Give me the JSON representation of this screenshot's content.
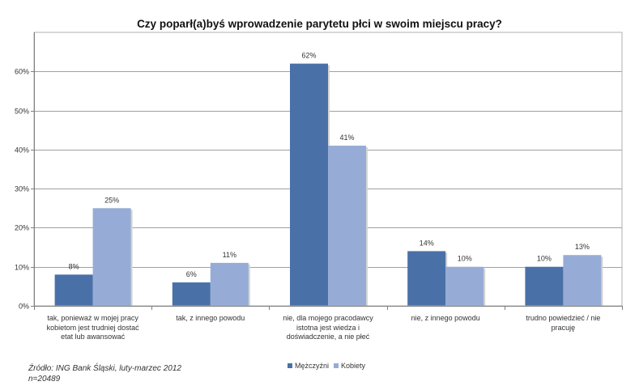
{
  "chart_data": {
    "type": "bar",
    "title": "Czy poparł(a)byś wprowadzenie parytetu płci w swoim miejscu pracy?",
    "categories": [
      [
        "tak, ponieważ w mojej pracy",
        "kobietom jest trudniej dostać",
        "etat lub awansować"
      ],
      [
        "tak, z innego powodu"
      ],
      [
        "nie, dla mojego pracodawcy",
        "istotna jest wiedza i",
        "doświadczenie, a nie płeć"
      ],
      [
        "nie, z innego powodu"
      ],
      [
        "trudno powiedzieć / nie",
        "pracuję"
      ]
    ],
    "series": [
      {
        "name": "Mężczyźni",
        "color": "#4a70a8",
        "values": [
          8,
          6,
          62,
          14,
          10
        ],
        "labels": [
          "8%",
          "6%",
          "62%",
          "14%",
          "10%"
        ]
      },
      {
        "name": "Kobiety",
        "color": "#96acd6",
        "values": [
          25,
          11,
          41,
          10,
          13
        ],
        "labels": [
          "25%",
          "11%",
          "41%",
          "10%",
          "13%"
        ]
      }
    ],
    "ylim": [
      0,
      70
    ],
    "yticks": [
      0,
      10,
      20,
      30,
      40,
      50,
      60
    ],
    "ytick_labels": [
      "0%",
      "10%",
      "20%",
      "30%",
      "40%",
      "50%",
      "60%"
    ],
    "xlabel": "",
    "ylabel": "",
    "grid": true,
    "legend_position": "bottom"
  },
  "source": {
    "line1": "Źródło: ING Bank Śląski, luty-marzec 2012",
    "line2": "n=20489"
  }
}
